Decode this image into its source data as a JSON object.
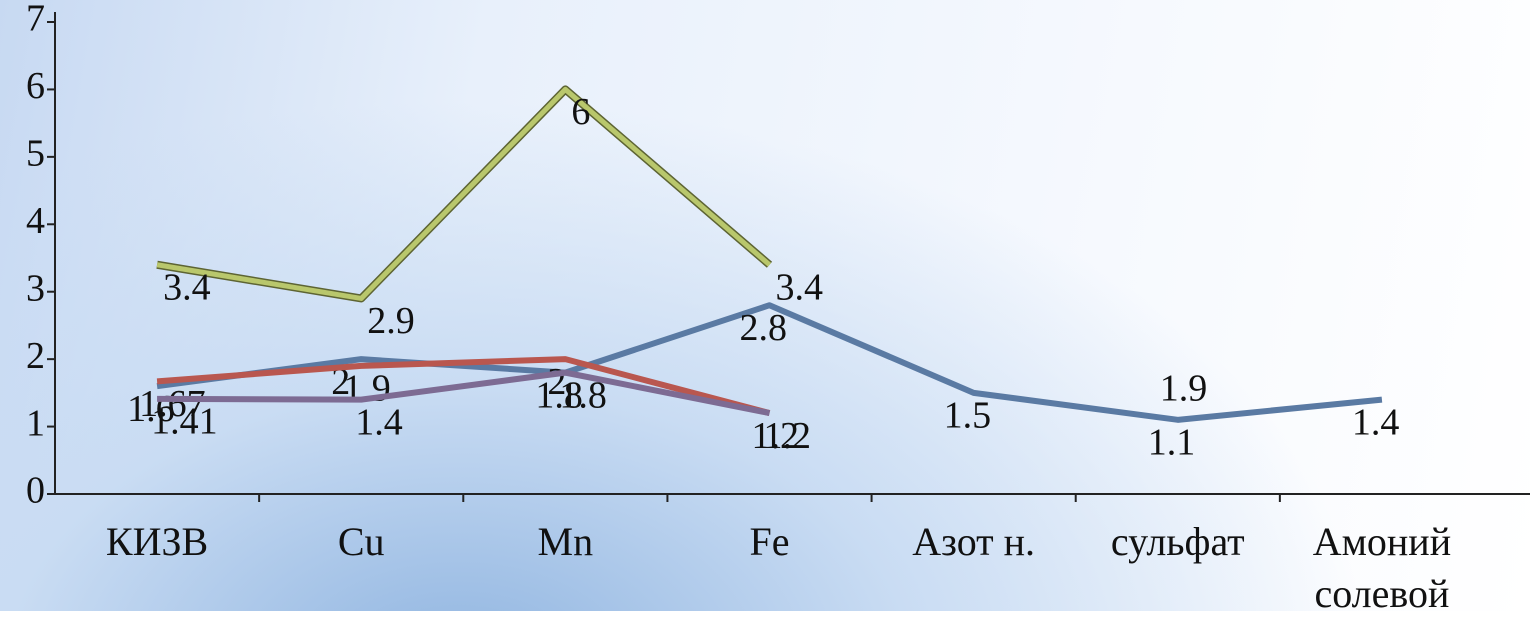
{
  "chart_data": {
    "type": "line",
    "categories": [
      "КИЗВ",
      "Cu",
      "Mn",
      "Fe",
      "Азот н.",
      "сульфат",
      "Амоний солевой"
    ],
    "series": [
      {
        "color": "#5a7aa3",
        "values": [
          1.6,
          2,
          1.8,
          2.8,
          1.5,
          1.1,
          1.4
        ]
      },
      {
        "color": "#b9574f",
        "values": [
          1.67,
          1.9,
          2,
          1.2,
          null,
          1.9,
          null
        ]
      },
      {
        "color": "#7d6b93",
        "values": [
          1.41,
          1.4,
          1.8,
          1.2,
          null,
          null,
          null
        ]
      },
      {
        "color": "#b9c76c",
        "values": [
          3.4,
          2.9,
          6,
          3.4,
          null,
          null,
          null
        ]
      }
    ],
    "ylim": [
      0,
      7
    ],
    "yticks": [
      0,
      1,
      2,
      3,
      4,
      5,
      6,
      7
    ]
  }
}
